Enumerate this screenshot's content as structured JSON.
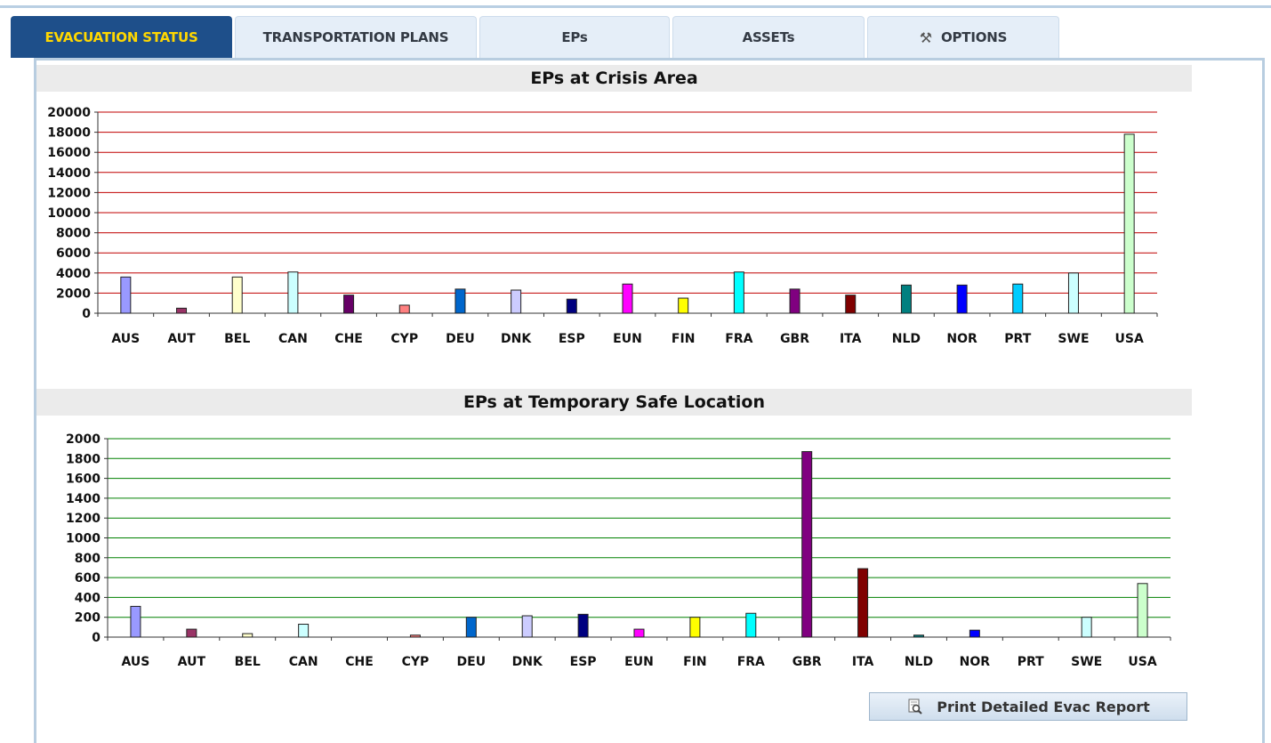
{
  "tabs": [
    {
      "label": "EVACUATION STATUS",
      "active": true
    },
    {
      "label": "TRANSPORTATION PLANS",
      "active": false
    },
    {
      "label": "EPs",
      "active": false
    },
    {
      "label": "ASSETs",
      "active": false
    },
    {
      "label": "OPTIONS",
      "active": false,
      "icon": "tools-icon"
    }
  ],
  "print_button": {
    "label": "Print Detailed Evac Report",
    "icon": "print-preview-icon"
  },
  "chart_data": [
    {
      "type": "bar",
      "title": "EPs at Crisis Area",
      "categories": [
        "AUS",
        "AUT",
        "BEL",
        "CAN",
        "CHE",
        "CYP",
        "DEU",
        "DNK",
        "ESP",
        "EUN",
        "FIN",
        "FRA",
        "GBR",
        "ITA",
        "NLD",
        "NOR",
        "PRT",
        "SWE",
        "USA"
      ],
      "values": [
        3600,
        500,
        3600,
        4100,
        1800,
        800,
        2400,
        2300,
        1400,
        2900,
        1500,
        4100,
        2400,
        1800,
        2800,
        2800,
        2900,
        4000,
        17800
      ],
      "colors": [
        "#9999ff",
        "#993366",
        "#ffffcc",
        "#ccffff",
        "#660066",
        "#ff8080",
        "#0066cc",
        "#ccccff",
        "#000080",
        "#ff00ff",
        "#ffff00",
        "#00ffff",
        "#800080",
        "#800000",
        "#008080",
        "#0000ff",
        "#00ccff",
        "#ccffff",
        "#ccffcc"
      ],
      "ylim": [
        0,
        20000
      ],
      "yticks": [
        0,
        2000,
        4000,
        6000,
        8000,
        10000,
        12000,
        14000,
        16000,
        18000,
        20000
      ],
      "grid": true,
      "grid_color": "#c00000",
      "xlabel": "",
      "ylabel": ""
    },
    {
      "type": "bar",
      "title": "EPs at Temporary Safe Location",
      "categories": [
        "AUS",
        "AUT",
        "BEL",
        "CAN",
        "CHE",
        "CYP",
        "DEU",
        "DNK",
        "ESP",
        "EUN",
        "FIN",
        "FRA",
        "GBR",
        "ITA",
        "NLD",
        "NOR",
        "PRT",
        "SWE",
        "USA"
      ],
      "values": [
        310,
        80,
        35,
        130,
        0,
        20,
        200,
        215,
        230,
        80,
        200,
        240,
        1870,
        690,
        20,
        70,
        0,
        200,
        540
      ],
      "colors": [
        "#9999ff",
        "#993366",
        "#ffffcc",
        "#ccffff",
        "#660066",
        "#ff8080",
        "#0066cc",
        "#ccccff",
        "#000080",
        "#ff00ff",
        "#ffff00",
        "#00ffff",
        "#800080",
        "#800000",
        "#008080",
        "#0000ff",
        "#00ccff",
        "#ccffff",
        "#ccffcc"
      ],
      "ylim": [
        0,
        2000
      ],
      "yticks": [
        0,
        200,
        400,
        600,
        800,
        1000,
        1200,
        1400,
        1600,
        1800,
        2000
      ],
      "grid": true,
      "grid_color": "#008000",
      "xlabel": "",
      "ylabel": ""
    }
  ]
}
